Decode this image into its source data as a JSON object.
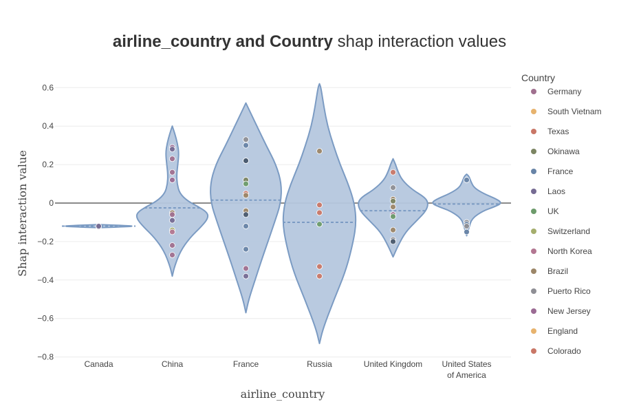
{
  "chart_data": {
    "type": "violin",
    "title_bold": "airline_country and Country",
    "title_rest": " shap interaction values",
    "xlabel": "airline_country",
    "ylabel": "Shap interaction value",
    "categories": [
      "Canada",
      "China",
      "France",
      "Russia",
      "United Kingdom",
      "United States of America"
    ],
    "category_label_lines": [
      [
        "Canada"
      ],
      [
        "China"
      ],
      [
        "France"
      ],
      [
        "Russia"
      ],
      [
        "United Kingdom"
      ],
      [
        "United States",
        "of America"
      ]
    ],
    "ylim": [
      -0.8,
      0.7
    ],
    "yticks": [
      -0.8,
      -0.6,
      -0.4,
      -0.2,
      0,
      0.2,
      0.4,
      0.6
    ],
    "ytick_labels": [
      "−0.8",
      "−0.6",
      "−0.4",
      "−0.2",
      "0",
      "0.2",
      "0.4",
      "0.6"
    ],
    "violin_color": "#7b9bc3",
    "violin_fill": "#b5c7de",
    "legend_title": "Country",
    "legend": [
      {
        "name": "Germany",
        "color": "#a0708f"
      },
      {
        "name": "South Vietnam",
        "color": "#e7b36e"
      },
      {
        "name": "Texas",
        "color": "#c97767"
      },
      {
        "name": "Okinawa",
        "color": "#7c8563"
      },
      {
        "name": "France",
        "color": "#6884a7"
      },
      {
        "name": "Laos",
        "color": "#766b93"
      },
      {
        "name": "UK",
        "color": "#6d9b6b"
      },
      {
        "name": "Switzerland",
        "color": "#a5ae6d"
      },
      {
        "name": "North Korea",
        "color": "#b37792"
      },
      {
        "name": "Brazil",
        "color": "#9c8668"
      },
      {
        "name": "Puerto Rico",
        "color": "#8f8f95"
      },
      {
        "name": "New Jersey",
        "color": "#9b6b94"
      },
      {
        "name": "England",
        "color": "#e7b36e"
      },
      {
        "name": "Colorado",
        "color": "#c97767"
      }
    ],
    "violins": [
      {
        "category": "Canada",
        "mean": -0.12,
        "profile": [
          [
            -0.128,
            0
          ],
          [
            -0.124,
            0.6
          ],
          [
            -0.12,
            1.0
          ],
          [
            -0.116,
            0.6
          ],
          [
            -0.112,
            0
          ]
        ],
        "points": [
          {
            "y": -0.124,
            "color": "#8f8f95"
          },
          {
            "y": -0.12,
            "color": "#766b93"
          }
        ]
      },
      {
        "category": "China",
        "mean": -0.025,
        "profile": [
          [
            -0.38,
            0
          ],
          [
            -0.33,
            0.06
          ],
          [
            -0.25,
            0.22
          ],
          [
            -0.18,
            0.48
          ],
          [
            -0.12,
            0.8
          ],
          [
            -0.08,
            0.97
          ],
          [
            -0.05,
            0.96
          ],
          [
            -0.02,
            0.72
          ],
          [
            0.01,
            0.42
          ],
          [
            0.05,
            0.2
          ],
          [
            0.1,
            0.13
          ],
          [
            0.15,
            0.12
          ],
          [
            0.2,
            0.15
          ],
          [
            0.26,
            0.18
          ],
          [
            0.31,
            0.14
          ],
          [
            0.36,
            0.07
          ],
          [
            0.4,
            0
          ]
        ],
        "points": [
          {
            "y": 0.29,
            "color": "#9b6b94"
          },
          {
            "y": 0.28,
            "color": "#766b93"
          },
          {
            "y": 0.23,
            "color": "#a0708f"
          },
          {
            "y": 0.16,
            "color": "#a0708f"
          },
          {
            "y": 0.12,
            "color": "#9b6b94"
          },
          {
            "y": -0.05,
            "color": "#9c8668"
          },
          {
            "y": -0.06,
            "color": "#a0708f"
          },
          {
            "y": -0.09,
            "color": "#766b93"
          },
          {
            "y": -0.14,
            "color": "#a5ae6d"
          },
          {
            "y": -0.15,
            "color": "#b37792"
          },
          {
            "y": -0.22,
            "color": "#a0708f"
          },
          {
            "y": -0.27,
            "color": "#a0708f"
          }
        ]
      },
      {
        "category": "France",
        "mean": 0.015,
        "profile": [
          [
            -0.57,
            0
          ],
          [
            -0.5,
            0.08
          ],
          [
            -0.4,
            0.25
          ],
          [
            -0.3,
            0.42
          ],
          [
            -0.2,
            0.6
          ],
          [
            -0.1,
            0.78
          ],
          [
            0.0,
            0.95
          ],
          [
            0.1,
            0.97
          ],
          [
            0.2,
            0.82
          ],
          [
            0.3,
            0.55
          ],
          [
            0.4,
            0.3
          ],
          [
            0.48,
            0.1
          ],
          [
            0.52,
            0
          ]
        ],
        "points": [
          {
            "y": 0.33,
            "color": "#8f8f95"
          },
          {
            "y": 0.3,
            "color": "#6884a7"
          },
          {
            "y": 0.22,
            "color": "#6884a7"
          },
          {
            "y": 0.22,
            "color": "#4a5a6e"
          },
          {
            "y": 0.12,
            "color": "#7c8563"
          },
          {
            "y": 0.1,
            "color": "#6d9b6b"
          },
          {
            "y": 0.05,
            "color": "#c97767"
          },
          {
            "y": 0.04,
            "color": "#9c8668"
          },
          {
            "y": -0.04,
            "color": "#9c8668"
          },
          {
            "y": -0.06,
            "color": "#4a5a6e"
          },
          {
            "y": -0.12,
            "color": "#6884a7"
          },
          {
            "y": -0.24,
            "color": "#6884a7"
          },
          {
            "y": -0.34,
            "color": "#a0708f"
          },
          {
            "y": -0.38,
            "color": "#766b93"
          }
        ]
      },
      {
        "category": "Russia",
        "mean": -0.1,
        "profile": [
          [
            -0.73,
            0
          ],
          [
            -0.65,
            0.1
          ],
          [
            -0.5,
            0.4
          ],
          [
            -0.35,
            0.72
          ],
          [
            -0.2,
            0.92
          ],
          [
            -0.1,
            1.0
          ],
          [
            0.0,
            0.95
          ],
          [
            0.1,
            0.78
          ],
          [
            0.2,
            0.56
          ],
          [
            0.3,
            0.38
          ],
          [
            0.4,
            0.22
          ],
          [
            0.5,
            0.12
          ],
          [
            0.6,
            0.04
          ],
          [
            0.62,
            0
          ]
        ],
        "points": [
          {
            "y": 0.27,
            "color": "#9c8668"
          },
          {
            "y": -0.01,
            "color": "#c97767"
          },
          {
            "y": -0.05,
            "color": "#c97767"
          },
          {
            "y": -0.11,
            "color": "#6d9b6b"
          },
          {
            "y": -0.33,
            "color": "#c97767"
          },
          {
            "y": -0.38,
            "color": "#c97767"
          }
        ]
      },
      {
        "category": "United Kingdom",
        "mean": -0.04,
        "profile": [
          [
            -0.28,
            0
          ],
          [
            -0.22,
            0.14
          ],
          [
            -0.15,
            0.34
          ],
          [
            -0.09,
            0.65
          ],
          [
            -0.04,
            0.9
          ],
          [
            0.0,
            0.96
          ],
          [
            0.03,
            0.86
          ],
          [
            0.07,
            0.52
          ],
          [
            0.12,
            0.24
          ],
          [
            0.17,
            0.12
          ],
          [
            0.2,
            0.07
          ],
          [
            0.23,
            0
          ]
        ],
        "points": [
          {
            "y": 0.16,
            "color": "#c97767"
          },
          {
            "y": 0.08,
            "color": "#8f8f95"
          },
          {
            "y": 0.02,
            "color": "#9c8668"
          },
          {
            "y": 0.01,
            "color": "#7c8563"
          },
          {
            "y": -0.02,
            "color": "#9c8668"
          },
          {
            "y": -0.06,
            "color": "#a0708f"
          },
          {
            "y": -0.07,
            "color": "#6d9b6b"
          },
          {
            "y": -0.14,
            "color": "#9c8668"
          },
          {
            "y": -0.19,
            "color": "#8f8f95"
          },
          {
            "y": -0.2,
            "color": "#4a5a6e"
          }
        ]
      },
      {
        "category": "United States of America",
        "mean": -0.005,
        "profile": [
          [
            -0.17,
            0
          ],
          [
            -0.13,
            0.06
          ],
          [
            -0.08,
            0.14
          ],
          [
            -0.04,
            0.45
          ],
          [
            -0.02,
            0.75
          ],
          [
            0.0,
            0.96
          ],
          [
            0.02,
            0.82
          ],
          [
            0.05,
            0.45
          ],
          [
            0.08,
            0.2
          ],
          [
            0.11,
            0.12
          ],
          [
            0.14,
            0.06
          ],
          [
            0.15,
            0
          ]
        ],
        "points": [
          {
            "y": 0.12,
            "color": "#6884a7"
          },
          {
            "y": -0.1,
            "color": "#8f8f95"
          },
          {
            "y": -0.11,
            "color": "#6884a7"
          },
          {
            "y": -0.12,
            "color": "#8f8f95"
          },
          {
            "y": -0.15,
            "color": "#6884a7"
          }
        ]
      }
    ]
  }
}
